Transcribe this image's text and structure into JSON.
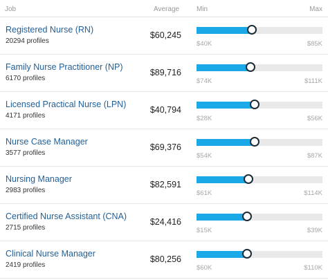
{
  "header": {
    "job": "Job",
    "average": "Average",
    "min": "Min",
    "max": "Max"
  },
  "colors": {
    "link": "#1f5f98",
    "bar_fill": "#1aa9e6",
    "bar_track": "#e9e9e9",
    "knob_border": "#1d2b36"
  },
  "rows": [
    {
      "title": "Registered Nurse (RN)",
      "profiles": "20294 profiles",
      "average": "$60,245",
      "min": "$40K",
      "max": "$85K",
      "fill_fraction": 0.44
    },
    {
      "title": "Family Nurse Practitioner (NP)",
      "profiles": "6170 profiles",
      "average": "$89,716",
      "min": "$74K",
      "max": "$111K",
      "fill_fraction": 0.43
    },
    {
      "title": "Licensed Practical Nurse (LPN)",
      "profiles": "4171 profiles",
      "average": "$40,794",
      "min": "$28K",
      "max": "$56K",
      "fill_fraction": 0.46
    },
    {
      "title": "Nurse Case Manager",
      "profiles": "3577 profiles",
      "average": "$69,376",
      "min": "$54K",
      "max": "$87K",
      "fill_fraction": 0.46
    },
    {
      "title": "Nursing Manager",
      "profiles": "2983 profiles",
      "average": "$82,591",
      "min": "$61K",
      "max": "$114K",
      "fill_fraction": 0.41
    },
    {
      "title": "Certified Nurse Assistant (CNA)",
      "profiles": "2715 profiles",
      "average": "$24,416",
      "min": "$15K",
      "max": "$39K",
      "fill_fraction": 0.4
    },
    {
      "title": "Clinical Nurse Manager",
      "profiles": "2419 profiles",
      "average": "$80,256",
      "min": "$60K",
      "max": "$110K",
      "fill_fraction": 0.4
    }
  ]
}
